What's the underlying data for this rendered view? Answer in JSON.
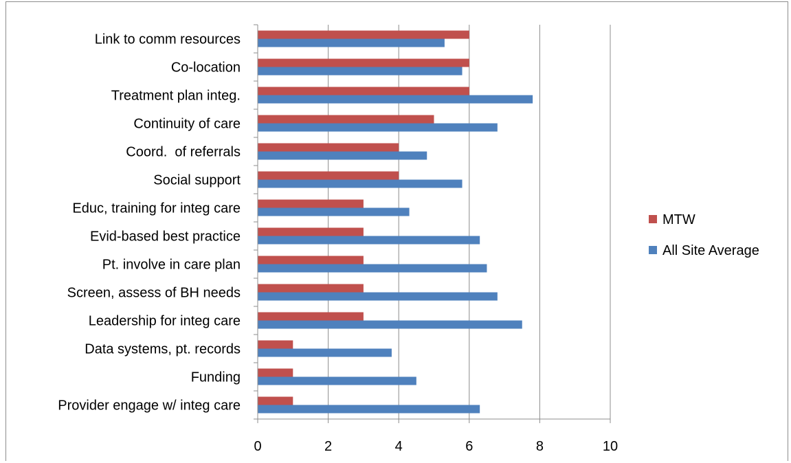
{
  "chart_data": {
    "type": "bar",
    "orientation": "horizontal",
    "categories": [
      "Link to comm resources",
      "Co-location",
      "Treatment plan integ.",
      "Continuity of care",
      "Coord.  of referrals",
      "Social support",
      "Educ, training for integ care",
      "Evid-based best practice",
      "Pt. involve in care plan",
      "Screen, assess of BH needs",
      "Leadership for integ care",
      "Data systems, pt. records",
      "Funding",
      "Provider engage w/ integ care"
    ],
    "series": [
      {
        "name": "MTW",
        "color": "#c0504d",
        "values": [
          6,
          6,
          6,
          5,
          4,
          4,
          3,
          3,
          3,
          3,
          3,
          1,
          1,
          1
        ]
      },
      {
        "name": "All Site Average",
        "color": "#4f81bd",
        "values": [
          5.3,
          5.8,
          7.8,
          6.8,
          4.8,
          5.8,
          4.3,
          6.3,
          6.5,
          6.8,
          7.5,
          3.8,
          4.5,
          6.3
        ]
      }
    ],
    "xlim": [
      0,
      10
    ],
    "xticks": [
      "0",
      "2",
      "4",
      "6",
      "8",
      "10"
    ],
    "grid": "vertical major gridlines",
    "legend": "right"
  }
}
